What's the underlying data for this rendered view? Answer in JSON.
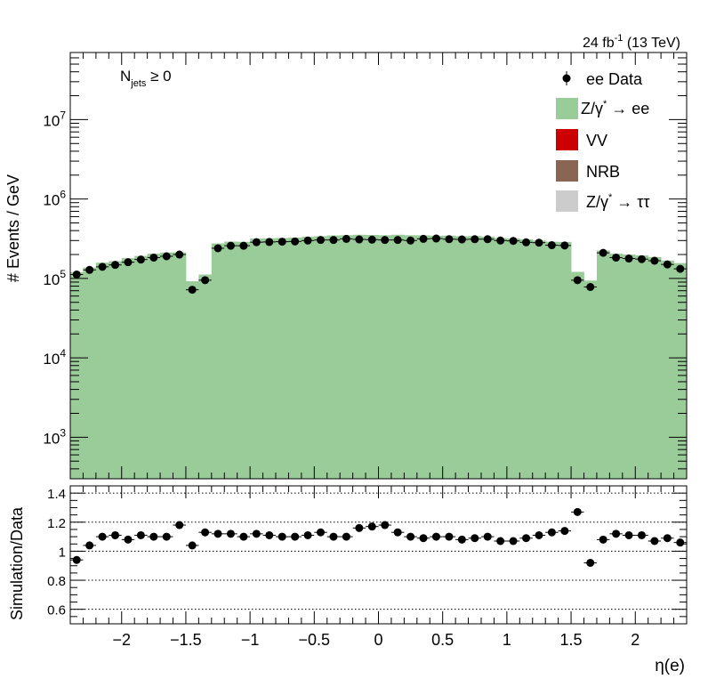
{
  "lumi_label": "24 fb",
  "lumi_exp": "-1",
  "lumi_energy": " (13 TeV)",
  "selection": {
    "main": "N",
    "sub": "jets",
    "rel": " ≥ 0"
  },
  "chart_data": [
    {
      "type": "bar",
      "title": "",
      "xlabel": "η(e)",
      "ylabel": "# Events / GeV",
      "yscale": "log",
      "xlim": [
        -2.4,
        2.4
      ],
      "ylim": [
        300,
        70000000
      ],
      "ytick_labels": [
        "10^3",
        "10^4",
        "10^5",
        "10^6",
        "10^7"
      ],
      "xtick_labels": [
        "−2",
        "−1.5",
        "−1",
        "−0.5",
        "0",
        "0.5",
        "1",
        "1.5",
        "2"
      ],
      "bin_edges": [
        -2.4,
        -2.3,
        -2.2,
        -2.1,
        -2.0,
        -1.9,
        -1.8,
        -1.7,
        -1.6,
        -1.5,
        -1.4,
        -1.3,
        -1.2,
        -1.1,
        -1.0,
        -0.9,
        -0.8,
        -0.7,
        -0.6,
        -0.5,
        -0.4,
        -0.3,
        -0.2,
        -0.1,
        0.0,
        0.1,
        0.2,
        0.3,
        0.4,
        0.5,
        0.6,
        0.7,
        0.8,
        0.9,
        1.0,
        1.1,
        1.2,
        1.3,
        1.4,
        1.5,
        1.6,
        1.7,
        1.8,
        1.9,
        2.0,
        2.1,
        2.2,
        2.3,
        2.4
      ],
      "legend": {
        "placement": "top-right",
        "entries": [
          {
            "label": "ee Data",
            "kind": "marker"
          },
          {
            "label": "Z/γ* → ee",
            "label_main": "Z/γ",
            "label_sup": "*",
            "label_rest": " → ee",
            "kind": "fill",
            "color": "#9acc9a"
          },
          {
            "label": "VV",
            "label_main": "VV",
            "label_sup": "",
            "label_rest": "",
            "kind": "fill",
            "color": "#cc0000"
          },
          {
            "label": "NRB",
            "label_main": "NRB",
            "label_sup": "",
            "label_rest": "",
            "kind": "fill",
            "color": "#8b6554"
          },
          {
            "label": "Z/γ* → ττ",
            "label_main": "Z/γ",
            "label_sup": "*",
            "label_rest": " → ττ",
            "kind": "fill",
            "color": "#cccccc"
          }
        ]
      },
      "series": [
        {
          "name": "Z/γ* → ee",
          "color": "#9acc9a",
          "values": [
            120000,
            137000,
            158000,
            165000,
            180000,
            192000,
            205000,
            212000,
            213000,
            92000,
            112000,
            276000,
            291000,
            289000,
            318000,
            320000,
            323000,
            327000,
            334000,
            340000,
            348000,
            350000,
            355000,
            353000,
            350000,
            355000,
            350000,
            349000,
            345000,
            346000,
            340000,
            342000,
            335000,
            322000,
            318000,
            310000,
            300000,
            290000,
            288000,
            121000,
            94000,
            225000,
            205000,
            200000,
            195000,
            186000,
            168000,
            156000
          ]
        },
        {
          "name": "VV",
          "color": "#cc0000",
          "values": []
        },
        {
          "name": "NRB",
          "color": "#8b6554",
          "values": []
        },
        {
          "name": "Z/γ* → ττ",
          "color": "#cccccc",
          "values": []
        },
        {
          "name": "ee Data",
          "color": "#000000",
          "values": [
            112000,
            128000,
            140000,
            148000,
            160000,
            173000,
            183000,
            190000,
            200000,
            72000,
            95000,
            240000,
            258000,
            258000,
            286000,
            288000,
            290000,
            292000,
            300000,
            305000,
            305000,
            315000,
            310000,
            308000,
            305000,
            305000,
            300000,
            315000,
            318000,
            312000,
            310000,
            312000,
            312000,
            300000,
            297000,
            285000,
            282000,
            262000,
            260000,
            95000,
            78000,
            210000,
            183000,
            178000,
            175000,
            167000,
            150000,
            132000
          ]
        }
      ]
    },
    {
      "type": "scatter",
      "title": "",
      "xlabel": "η(e)",
      "ylabel": "Simulation/Data",
      "xlim": [
        -2.4,
        2.4
      ],
      "ylim": [
        0.5,
        1.45
      ],
      "ytick_labels": [
        "0.6",
        "0.8",
        "1",
        "1.2",
        "1.4"
      ],
      "reference_lines": [
        0.6,
        0.8,
        1.0,
        1.2,
        1.4
      ],
      "series": [
        {
          "name": "",
          "color": "#000000",
          "x": [
            -2.35,
            -2.25,
            -2.15,
            -2.05,
            -1.95,
            -1.85,
            -1.75,
            -1.65,
            -1.55,
            -1.45,
            -1.35,
            -1.25,
            -1.15,
            -1.05,
            -0.95,
            -0.85,
            -0.75,
            -0.65,
            -0.55,
            -0.45,
            -0.35,
            -0.25,
            -0.15,
            -0.05,
            0.05,
            0.15,
            0.25,
            0.35,
            0.45,
            0.55,
            0.65,
            0.75,
            0.85,
            0.95,
            1.05,
            1.15,
            1.25,
            1.35,
            1.45,
            1.55,
            1.65,
            1.75,
            1.85,
            1.95,
            2.05,
            2.15,
            2.25,
            2.35
          ],
          "y": [
            0.94,
            1.04,
            1.1,
            1.11,
            1.08,
            1.11,
            1.1,
            1.1,
            1.18,
            1.04,
            1.13,
            1.12,
            1.12,
            1.1,
            1.12,
            1.11,
            1.1,
            1.1,
            1.11,
            1.13,
            1.1,
            1.1,
            1.16,
            1.17,
            1.18,
            1.13,
            1.1,
            1.09,
            1.1,
            1.1,
            1.08,
            1.09,
            1.1,
            1.07,
            1.07,
            1.09,
            1.11,
            1.13,
            1.14,
            1.27,
            0.92,
            1.08,
            1.12,
            1.11,
            1.11,
            1.07,
            1.09,
            1.06
          ]
        }
      ]
    }
  ]
}
